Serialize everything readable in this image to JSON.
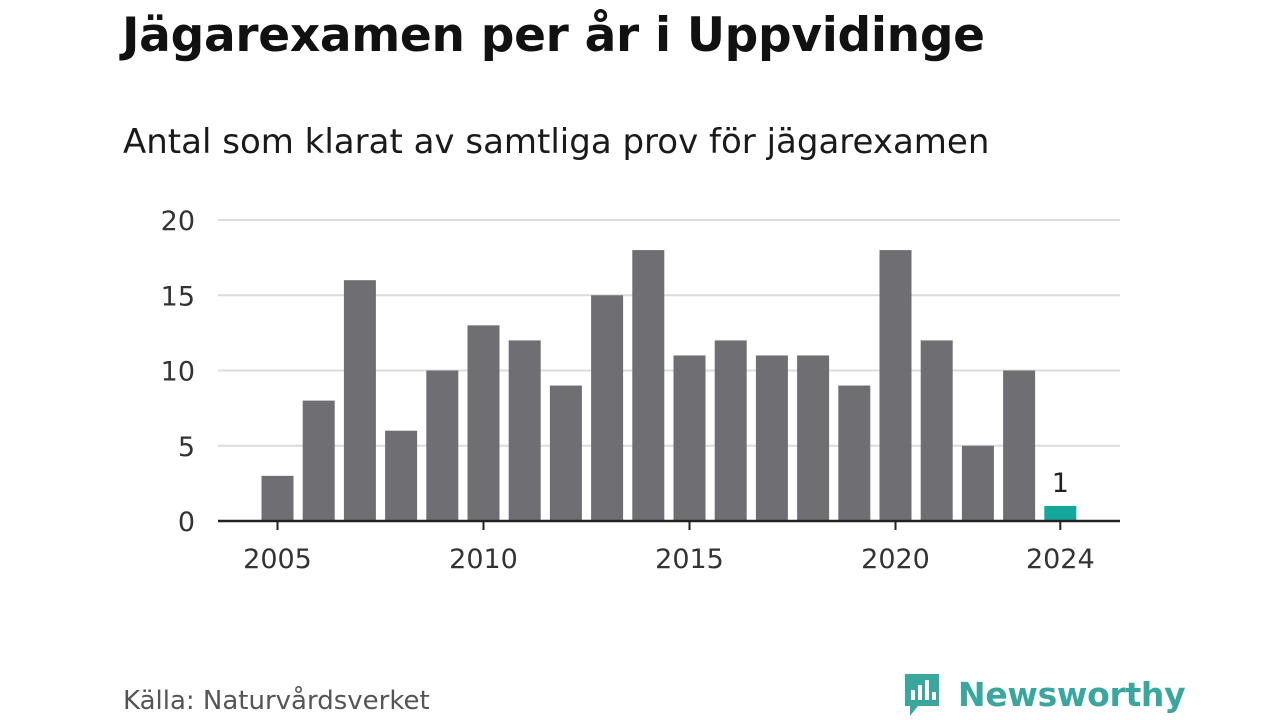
{
  "header": {
    "title": "Jägarexamen per år i Uppvidinge",
    "subtitle": "Antal som klarat av samtliga prov för jägarexamen"
  },
  "footer": {
    "source": "Källa: Naturvårdsverket",
    "brand": "Newsworthy",
    "brand_icon": "newsworthy-logo-icon"
  },
  "colors": {
    "bar": "#6f6e73",
    "highlight": "#14a89b",
    "grid": "#dcdcdc",
    "axis": "#222222",
    "brand": "#3aa79e"
  },
  "chart_data": {
    "type": "bar",
    "categories": [
      2005,
      2006,
      2007,
      2008,
      2009,
      2010,
      2011,
      2012,
      2013,
      2014,
      2015,
      2016,
      2017,
      2018,
      2019,
      2020,
      2021,
      2022,
      2023,
      2024
    ],
    "values": [
      3,
      8,
      16,
      6,
      10,
      13,
      12,
      9,
      15,
      18,
      11,
      12,
      11,
      11,
      9,
      18,
      12,
      5,
      10,
      1
    ],
    "highlight": [
      2024
    ],
    "data_labels": [
      {
        "x": 2024,
        "label": "1"
      }
    ],
    "x_ticks": [
      2005,
      2010,
      2015,
      2020,
      2024
    ],
    "y_ticks": [
      0,
      5,
      10,
      15,
      20
    ],
    "ylim": [
      0,
      20
    ],
    "grid": "horizontal",
    "legend": "none"
  }
}
